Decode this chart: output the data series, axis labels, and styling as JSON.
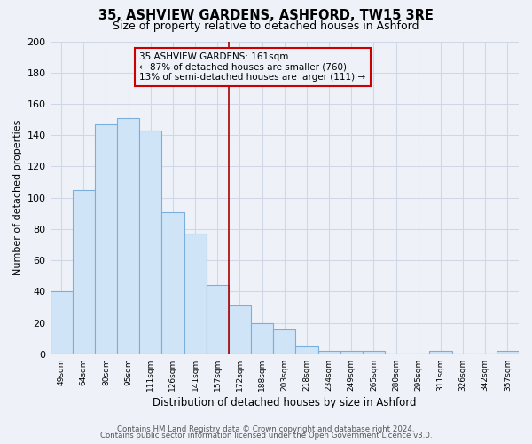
{
  "title": "35, ASHVIEW GARDENS, ASHFORD, TW15 3RE",
  "subtitle": "Size of property relative to detached houses in Ashford",
  "xlabel": "Distribution of detached houses by size in Ashford",
  "ylabel": "Number of detached properties",
  "bar_labels": [
    "49sqm",
    "64sqm",
    "80sqm",
    "95sqm",
    "111sqm",
    "126sqm",
    "141sqm",
    "157sqm",
    "172sqm",
    "188sqm",
    "203sqm",
    "218sqm",
    "234sqm",
    "249sqm",
    "265sqm",
    "280sqm",
    "295sqm",
    "311sqm",
    "326sqm",
    "342sqm",
    "357sqm"
  ],
  "bar_values": [
    40,
    105,
    147,
    151,
    143,
    91,
    77,
    44,
    31,
    20,
    16,
    5,
    2,
    2,
    2,
    0,
    0,
    2,
    0,
    0,
    2
  ],
  "bar_color": "#d0e4f7",
  "bar_edge_color": "#7aaedb",
  "ref_line_x": 7.5,
  "annotation_title": "35 ASHVIEW GARDENS: 161sqm",
  "annotation_line1": "← 87% of detached houses are smaller (760)",
  "annotation_line2": "13% of semi-detached houses are larger (111) →",
  "annotation_box_edge_color": "#cc0000",
  "ylim": [
    0,
    200
  ],
  "yticks": [
    0,
    20,
    40,
    60,
    80,
    100,
    120,
    140,
    160,
    180,
    200
  ],
  "footer_line1": "Contains HM Land Registry data © Crown copyright and database right 2024.",
  "footer_line2": "Contains public sector information licensed under the Open Government Licence v3.0.",
  "bg_color": "#eef2f8",
  "grid_color": "#d0d8e8"
}
